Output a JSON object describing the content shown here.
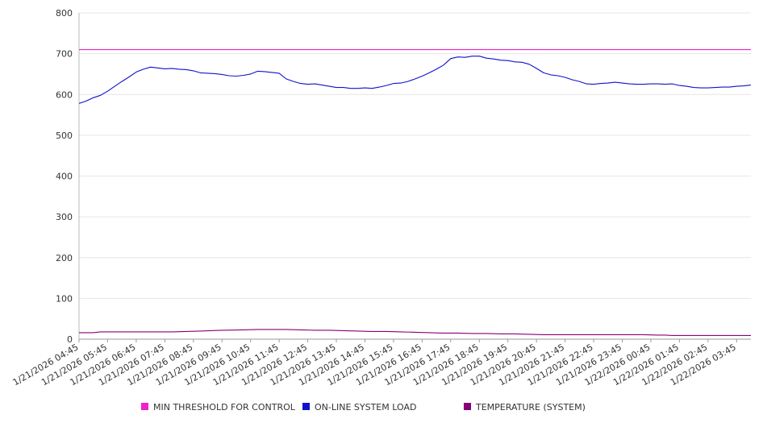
{
  "chart_data": {
    "type": "line",
    "title": "",
    "xlabel": "",
    "ylabel": "",
    "ylim": [
      0,
      800
    ],
    "yticks": [
      0,
      100,
      200,
      300,
      400,
      500,
      600,
      700,
      800
    ],
    "grid": true,
    "legend_position": "bottom",
    "x_start_hour": 4.75,
    "x_end_hour": 28.25,
    "x_tick_labels": [
      "1/21/2026 04:45",
      "1/21/2026 05:45",
      "1/21/2026 06:45",
      "1/21/2026 07:45",
      "1/21/2026 08:45",
      "1/21/2026 09:45",
      "1/21/2026 10:45",
      "1/21/2026 11:45",
      "1/21/2026 12:45",
      "1/21/2026 13:45",
      "1/21/2026 14:45",
      "1/21/2026 15:45",
      "1/21/2026 16:45",
      "1/21/2026 17:45",
      "1/21/2026 18:45",
      "1/21/2026 19:45",
      "1/21/2026 20:45",
      "1/21/2026 21:45",
      "1/21/2026 22:45",
      "1/21/2026 23:45",
      "1/22/2026 00:45",
      "1/22/2026 01:45",
      "1/22/2026 02:45",
      "1/22/2026 03:45"
    ],
    "series": [
      {
        "name": "MIN THRESHOLD FOR CONTROL",
        "color": "#ee22cc",
        "points": [
          [
            4.75,
            710
          ],
          [
            28.25,
            710
          ]
        ]
      },
      {
        "name": "ON-LINE SYSTEM LOAD",
        "color": "#1111cc",
        "points": [
          [
            4.75,
            578
          ],
          [
            5.0,
            584
          ],
          [
            5.25,
            592
          ],
          [
            5.5,
            598
          ],
          [
            5.75,
            608
          ],
          [
            6.0,
            620
          ],
          [
            6.25,
            632
          ],
          [
            6.5,
            643
          ],
          [
            6.75,
            655
          ],
          [
            7.0,
            662
          ],
          [
            7.25,
            667
          ],
          [
            7.5,
            665
          ],
          [
            7.75,
            663
          ],
          [
            8.0,
            664
          ],
          [
            8.25,
            662
          ],
          [
            8.5,
            661
          ],
          [
            8.75,
            658
          ],
          [
            9.0,
            653
          ],
          [
            9.25,
            652
          ],
          [
            9.5,
            651
          ],
          [
            9.75,
            649
          ],
          [
            10.0,
            646
          ],
          [
            10.25,
            645
          ],
          [
            10.5,
            647
          ],
          [
            10.75,
            650
          ],
          [
            11.0,
            657
          ],
          [
            11.25,
            656
          ],
          [
            11.5,
            654
          ],
          [
            11.75,
            652
          ],
          [
            12.0,
            638
          ],
          [
            12.25,
            632
          ],
          [
            12.5,
            627
          ],
          [
            12.75,
            625
          ],
          [
            13.0,
            626
          ],
          [
            13.25,
            623
          ],
          [
            13.5,
            620
          ],
          [
            13.75,
            617
          ],
          [
            14.0,
            617
          ],
          [
            14.25,
            615
          ],
          [
            14.5,
            615
          ],
          [
            14.75,
            616
          ],
          [
            15.0,
            615
          ],
          [
            15.25,
            618
          ],
          [
            15.5,
            622
          ],
          [
            15.75,
            627
          ],
          [
            16.0,
            628
          ],
          [
            16.25,
            632
          ],
          [
            16.5,
            638
          ],
          [
            16.75,
            645
          ],
          [
            17.0,
            653
          ],
          [
            17.25,
            662
          ],
          [
            17.5,
            672
          ],
          [
            17.75,
            688
          ],
          [
            18.0,
            692
          ],
          [
            18.25,
            691
          ],
          [
            18.5,
            694
          ],
          [
            18.75,
            694
          ],
          [
            19.0,
            689
          ],
          [
            19.25,
            687
          ],
          [
            19.5,
            684
          ],
          [
            19.75,
            683
          ],
          [
            20.0,
            680
          ],
          [
            20.25,
            679
          ],
          [
            20.5,
            674
          ],
          [
            20.75,
            664
          ],
          [
            21.0,
            653
          ],
          [
            21.25,
            648
          ],
          [
            21.5,
            646
          ],
          [
            21.75,
            642
          ],
          [
            22.0,
            636
          ],
          [
            22.25,
            632
          ],
          [
            22.5,
            626
          ],
          [
            22.75,
            625
          ],
          [
            23.0,
            627
          ],
          [
            23.25,
            628
          ],
          [
            23.5,
            630
          ],
          [
            23.75,
            628
          ],
          [
            24.0,
            626
          ],
          [
            24.25,
            625
          ],
          [
            24.5,
            625
          ],
          [
            24.75,
            626
          ],
          [
            25.0,
            626
          ],
          [
            25.25,
            625
          ],
          [
            25.5,
            626
          ],
          [
            25.75,
            622
          ],
          [
            26.0,
            620
          ],
          [
            26.25,
            617
          ],
          [
            26.5,
            616
          ],
          [
            26.75,
            616
          ],
          [
            27.0,
            617
          ],
          [
            27.25,
            618
          ],
          [
            27.5,
            618
          ],
          [
            27.75,
            620
          ],
          [
            28.0,
            621
          ],
          [
            28.25,
            623
          ]
        ]
      },
      {
        "name": "TEMPERATURE (SYSTEM)",
        "color": "#880077",
        "points": [
          [
            4.75,
            16
          ],
          [
            5.25,
            16
          ],
          [
            5.5,
            18
          ],
          [
            6.0,
            18
          ],
          [
            7.0,
            18
          ],
          [
            8.0,
            18
          ],
          [
            8.5,
            19
          ],
          [
            9.0,
            20
          ],
          [
            9.75,
            22
          ],
          [
            10.5,
            23
          ],
          [
            11.0,
            24
          ],
          [
            11.5,
            24
          ],
          [
            12.0,
            24
          ],
          [
            12.5,
            23
          ],
          [
            13.0,
            22
          ],
          [
            13.5,
            22
          ],
          [
            14.0,
            21
          ],
          [
            14.5,
            20
          ],
          [
            15.0,
            19
          ],
          [
            15.5,
            19
          ],
          [
            16.0,
            18
          ],
          [
            16.5,
            17
          ],
          [
            17.0,
            16
          ],
          [
            17.5,
            15
          ],
          [
            18.0,
            15
          ],
          [
            18.5,
            14
          ],
          [
            19.0,
            14
          ],
          [
            19.5,
            13
          ],
          [
            20.0,
            13
          ],
          [
            20.5,
            12
          ],
          [
            21.0,
            11
          ],
          [
            21.5,
            11
          ],
          [
            22.0,
            11
          ],
          [
            22.5,
            11
          ],
          [
            23.0,
            11
          ],
          [
            23.5,
            11
          ],
          [
            24.0,
            11
          ],
          [
            24.5,
            11
          ],
          [
            25.0,
            10
          ],
          [
            25.25,
            10
          ],
          [
            25.5,
            9
          ],
          [
            26.0,
            9
          ],
          [
            26.5,
            9
          ],
          [
            27.0,
            9
          ],
          [
            27.5,
            9
          ],
          [
            28.0,
            9
          ],
          [
            28.25,
            9
          ]
        ]
      }
    ]
  }
}
